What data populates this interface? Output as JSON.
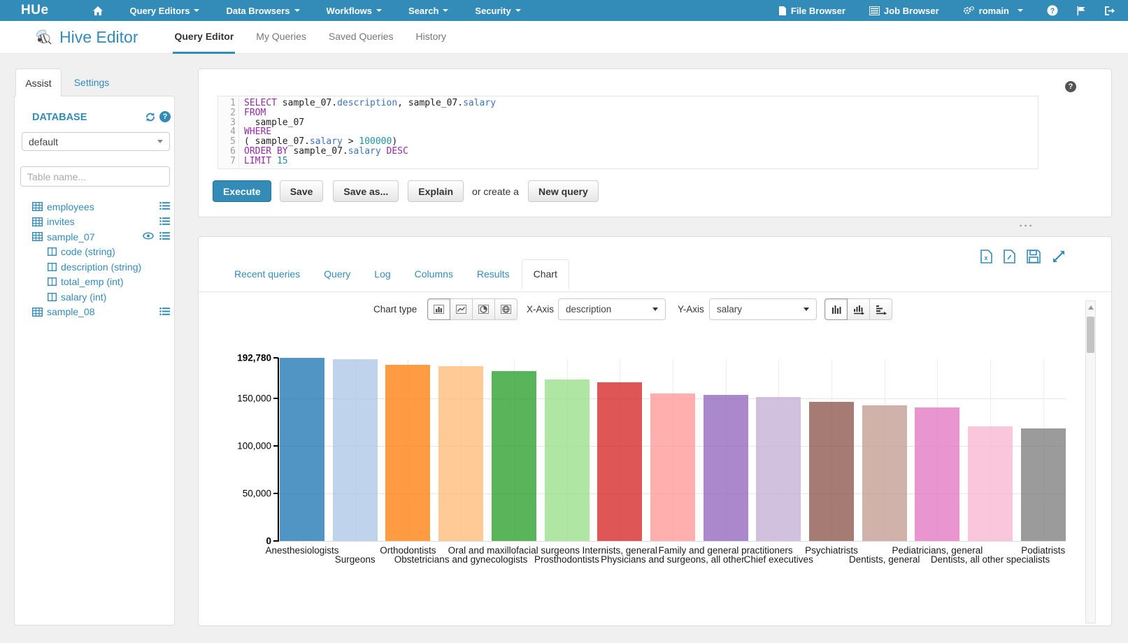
{
  "topnav": {
    "logo_text": "HUe",
    "menus": [
      {
        "label": "Query Editors"
      },
      {
        "label": "Data Browsers"
      },
      {
        "label": "Workflows"
      },
      {
        "label": "Search"
      },
      {
        "label": "Security"
      }
    ],
    "right": {
      "file_browser": "File Browser",
      "job_browser": "Job Browser",
      "user": "romain"
    }
  },
  "header": {
    "app_title": "Hive Editor",
    "tabs": [
      {
        "label": "Query Editor",
        "active": true
      },
      {
        "label": "My Queries",
        "active": false
      },
      {
        "label": "Saved Queries",
        "active": false
      },
      {
        "label": "History",
        "active": false
      }
    ]
  },
  "sidebar": {
    "assist_tab": "Assist",
    "settings_tab": "Settings",
    "database_label": "DATABASE",
    "database_value": "default",
    "table_filter_placeholder": "Table name...",
    "tree": [
      {
        "name": "employees",
        "type": "table",
        "right_icons": [
          "list"
        ]
      },
      {
        "name": "invites",
        "type": "table",
        "right_icons": [
          "list"
        ]
      },
      {
        "name": "sample_07",
        "type": "table",
        "right_icons": [
          "eye",
          "list"
        ]
      },
      {
        "name": "code (string)",
        "type": "column",
        "right_icons": []
      },
      {
        "name": "description (string)",
        "type": "column",
        "right_icons": []
      },
      {
        "name": "total_emp (int)",
        "type": "column",
        "right_icons": []
      },
      {
        "name": "salary (int)",
        "type": "column",
        "right_icons": []
      },
      {
        "name": "sample_08",
        "type": "table",
        "right_icons": [
          "list"
        ]
      }
    ]
  },
  "editor": {
    "lines": [
      [
        [
          "kw",
          "SELECT"
        ],
        [
          "pl",
          " sample_07."
        ],
        [
          "at",
          "description"
        ],
        [
          "pl",
          ", sample_07."
        ],
        [
          "at",
          "salary"
        ]
      ],
      [
        [
          "kw",
          "FROM"
        ]
      ],
      [
        [
          "pl",
          "  sample_07"
        ]
      ],
      [
        [
          "kw",
          "WHERE"
        ]
      ],
      [
        [
          "pl",
          "( sample_07."
        ],
        [
          "at",
          "salary"
        ],
        [
          "pl",
          " > "
        ],
        [
          "nu",
          "100000"
        ],
        [
          "pl",
          ")"
        ]
      ],
      [
        [
          "kw",
          "ORDER BY"
        ],
        [
          "pl",
          " sample_07."
        ],
        [
          "at",
          "salary"
        ],
        [
          "pl",
          " "
        ],
        [
          "kw",
          "DESC"
        ]
      ],
      [
        [
          "kw",
          "LIMIT"
        ],
        [
          "pl",
          " "
        ],
        [
          "nu",
          "15"
        ]
      ]
    ],
    "help_icon": "?"
  },
  "buttons": {
    "execute": "Execute",
    "save": "Save",
    "save_as": "Save as...",
    "explain": "Explain",
    "or_create": "or create a",
    "new_query": "New query"
  },
  "results": {
    "tabs": [
      "Recent queries",
      "Query",
      "Log",
      "Columns",
      "Results",
      "Chart"
    ],
    "active_tab": "Chart",
    "resize_dots": "···",
    "controls": {
      "chart_type_label": "Chart type",
      "x_axis_label": "X-Axis",
      "x_axis_value": "description",
      "y_axis_label": "Y-Axis",
      "y_axis_value": "salary"
    }
  },
  "colors": {
    "brand_blue": "#338bb8",
    "keyword": "#9628aa",
    "attribute": "#3b73c0",
    "number": "#1e91a0"
  },
  "chart_data": {
    "type": "bar",
    "title": "",
    "xlabel": "description",
    "ylabel": "salary",
    "ylim": [
      0,
      192780
    ],
    "grid": true,
    "legend": "none",
    "categories": [
      "Anesthesiologists",
      "Surgeons",
      "Orthodontists",
      "Obstetricians and gynecologists",
      "Oral and maxillofacial surgeons",
      "Prosthodontists",
      "Internists, general",
      "Physicians and surgeons, all other",
      "Family and general practitioners",
      "Chief executives",
      "Psychiatrists",
      "Dentists, general",
      "Pediatricians, general",
      "Dentists, all other specialists",
      "Podiatrists"
    ],
    "values": [
      192780,
      191410,
      185340,
      183600,
      178440,
      169810,
      167270,
      155150,
      153640,
      151370,
      146150,
      142870,
      140690,
      120360,
      118500
    ],
    "bar_colors": [
      "#1f77b4",
      "#aec7e8",
      "#ff7f0e",
      "#ffbb78",
      "#2ca02c",
      "#98df8a",
      "#d62728",
      "#ff9896",
      "#9467bd",
      "#c5b0d5",
      "#8c564b",
      "#c49c94",
      "#e377c2",
      "#f7b6d2",
      "#7f7f7f"
    ],
    "y_ticks": {
      "values": [
        192780,
        150000,
        100000,
        50000,
        0
      ],
      "labels": [
        "192,780",
        "150,000",
        "100,000",
        "50,000",
        "0"
      ],
      "bold": [
        true,
        false,
        false,
        false,
        true
      ]
    }
  }
}
